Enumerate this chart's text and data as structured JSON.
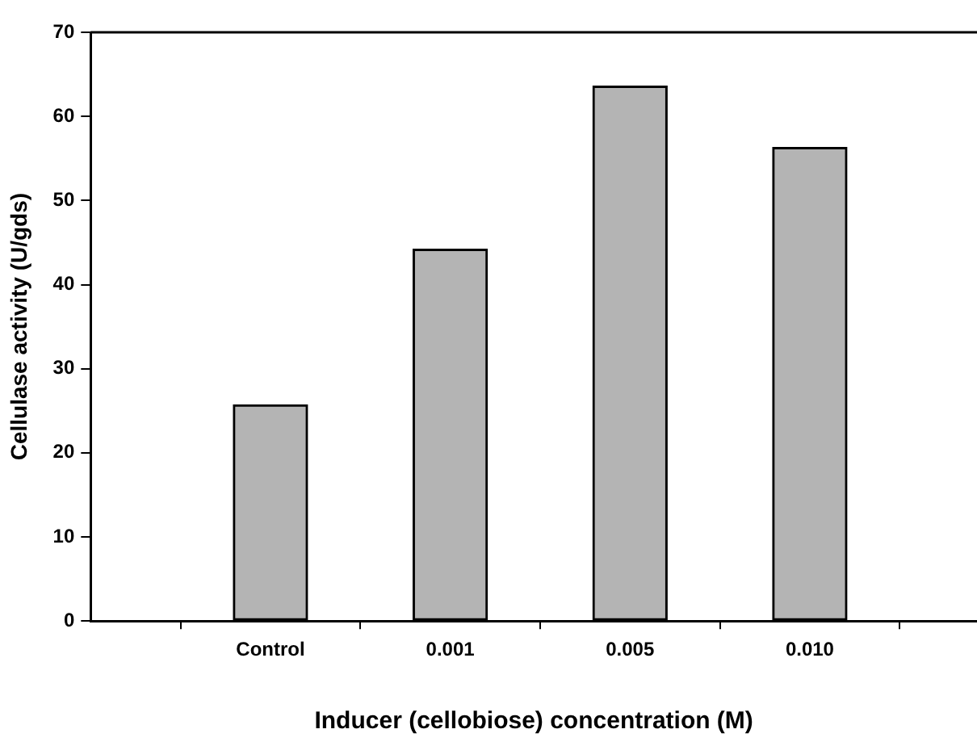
{
  "chart_data": {
    "type": "bar",
    "xlabel": "Inducer (cellobiose) concentration (M)",
    "ylabel": "Cellulase activity (U/gds)",
    "categories": [
      "Control",
      "0.001",
      "0.005",
      "0.010"
    ],
    "values": [
      25.7,
      44.2,
      63.6,
      56.3
    ],
    "color": "#b4b4b4",
    "ylim": [
      0,
      70
    ],
    "yticks": [
      0,
      10,
      20,
      30,
      40,
      50,
      60,
      70
    ],
    "grid": false,
    "legend": false
  }
}
